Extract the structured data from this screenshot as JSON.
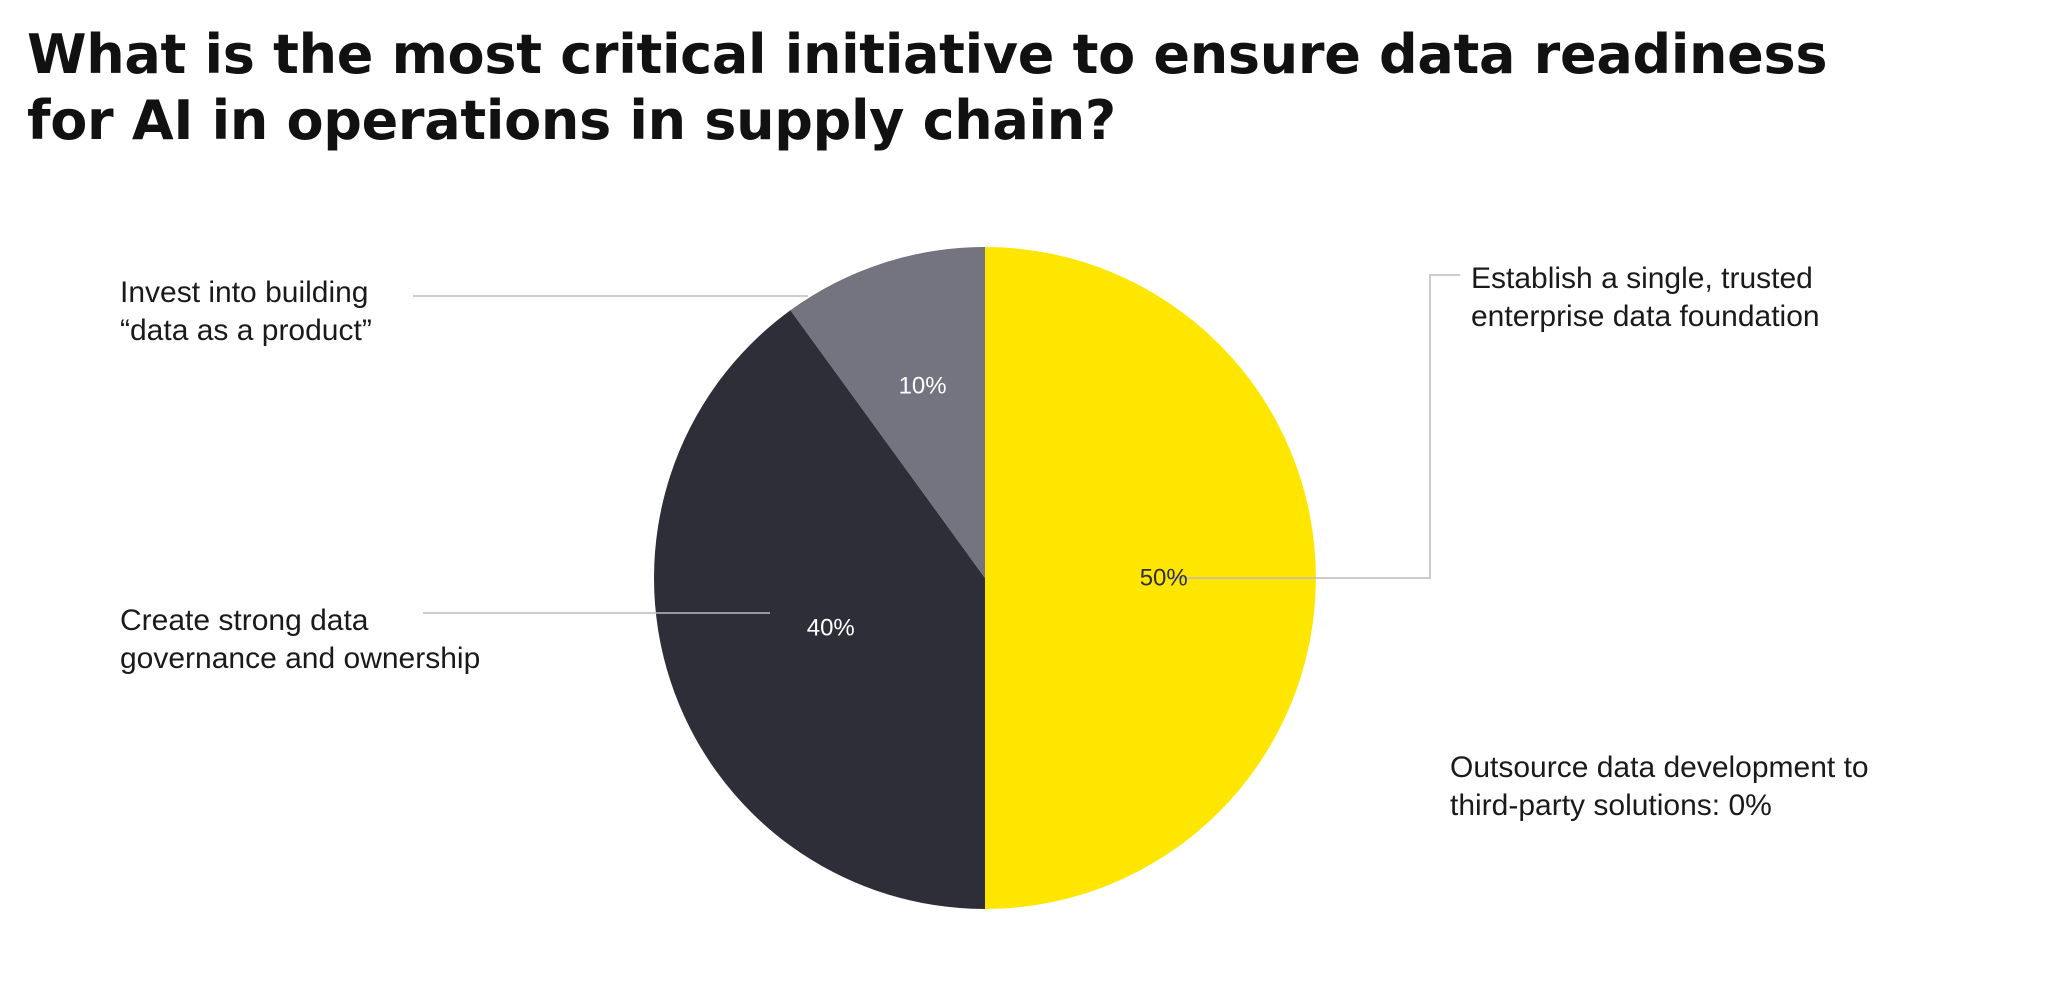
{
  "chart_data": {
    "type": "pie",
    "title": "What is the most critical initiative to ensure data readiness for AI in operations in supply chain?",
    "slices": [
      {
        "label_lines": [
          "Establish a single, trusted",
          "enterprise data foundation"
        ],
        "value": 50,
        "value_label": "50%",
        "color": "#FFE600",
        "label_color": "#2E2E38"
      },
      {
        "label_lines": [
          "Create strong data",
          "governance and ownership"
        ],
        "value": 40,
        "value_label": "40%",
        "color": "#2E2E38",
        "label_color": "#FFFFFF"
      },
      {
        "label_lines": [
          "Invest into building",
          "“data as a product”"
        ],
        "value": 10,
        "value_label": "10%",
        "color": "#747480",
        "label_color": "#FFFFFF"
      },
      {
        "label_lines": [
          "Outsource data development to",
          "third-party solutions: 0%"
        ],
        "value": 0,
        "value_label": "0%",
        "color": "#C4C4CD",
        "label_color": "#1A1A1A"
      }
    ],
    "start_angle_deg": 0,
    "direction": "clockwise"
  },
  "colors": {
    "leader_line": "#BBBBBB",
    "text": "#1A1A1A"
  }
}
